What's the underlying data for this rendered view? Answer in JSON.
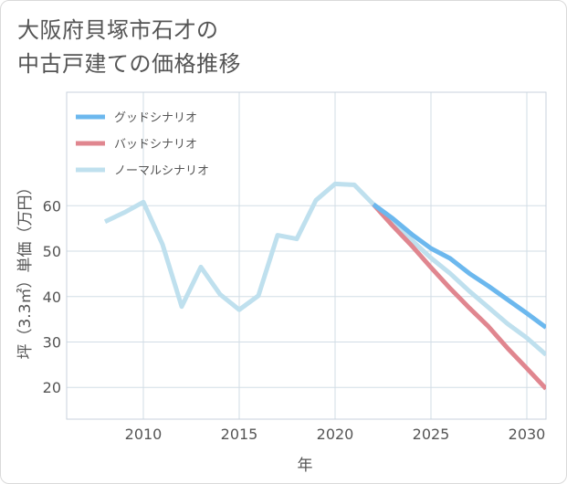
{
  "title": {
    "line1": "大阪府貝塚市石才の",
    "line2": "中古戸建ての価格推移"
  },
  "chart_data": {
    "type": "line",
    "title": "大阪府貝塚市石才の中古戸建ての価格推移",
    "xlabel": "年",
    "ylabel": "坪（3.3㎡）単価（万円）",
    "xlim": [
      2006,
      2031
    ],
    "ylim": [
      13,
      85
    ],
    "xticks": [
      2010,
      2015,
      2020,
      2025,
      2030
    ],
    "yticks": [
      20,
      30,
      40,
      50,
      60
    ],
    "grid": true,
    "legend_position": "top-left",
    "series": [
      {
        "name": "グッドシナリオ",
        "color": "#6cb8ee",
        "x": [
          2022,
          2023,
          2024,
          2025,
          2026,
          2027,
          2028,
          2029,
          2030,
          2031
        ],
        "y": [
          60.3,
          57.2,
          53.7,
          50.6,
          48.4,
          45.1,
          42.3,
          39.3,
          36.3,
          33.2
        ]
      },
      {
        "name": "バッドシナリオ",
        "color": "#e0868f",
        "x": [
          2022,
          2023,
          2024,
          2025,
          2026,
          2027,
          2028,
          2029,
          2030,
          2031
        ],
        "y": [
          60.3,
          55.6,
          51.2,
          46.4,
          41.8,
          37.5,
          33.4,
          28.6,
          24.2,
          19.7
        ]
      },
      {
        "name": "ノーマルシナリオ",
        "color": "#bfe0ee",
        "x": [
          2008,
          2009,
          2010,
          2011,
          2012,
          2013,
          2014,
          2015,
          2016,
          2017,
          2018,
          2019,
          2020,
          2021,
          2022,
          2023,
          2024,
          2025,
          2026,
          2027,
          2028,
          2029,
          2030,
          2031
        ],
        "y": [
          56.5,
          58.5,
          60.8,
          51.5,
          37.8,
          46.5,
          40.5,
          37.1,
          40.2,
          53.5,
          52.7,
          61.2,
          64.8,
          64.6,
          60.3,
          56.4,
          52.4,
          48.5,
          45.1,
          41.2,
          37.6,
          34.0,
          30.9,
          27.2
        ]
      }
    ]
  }
}
